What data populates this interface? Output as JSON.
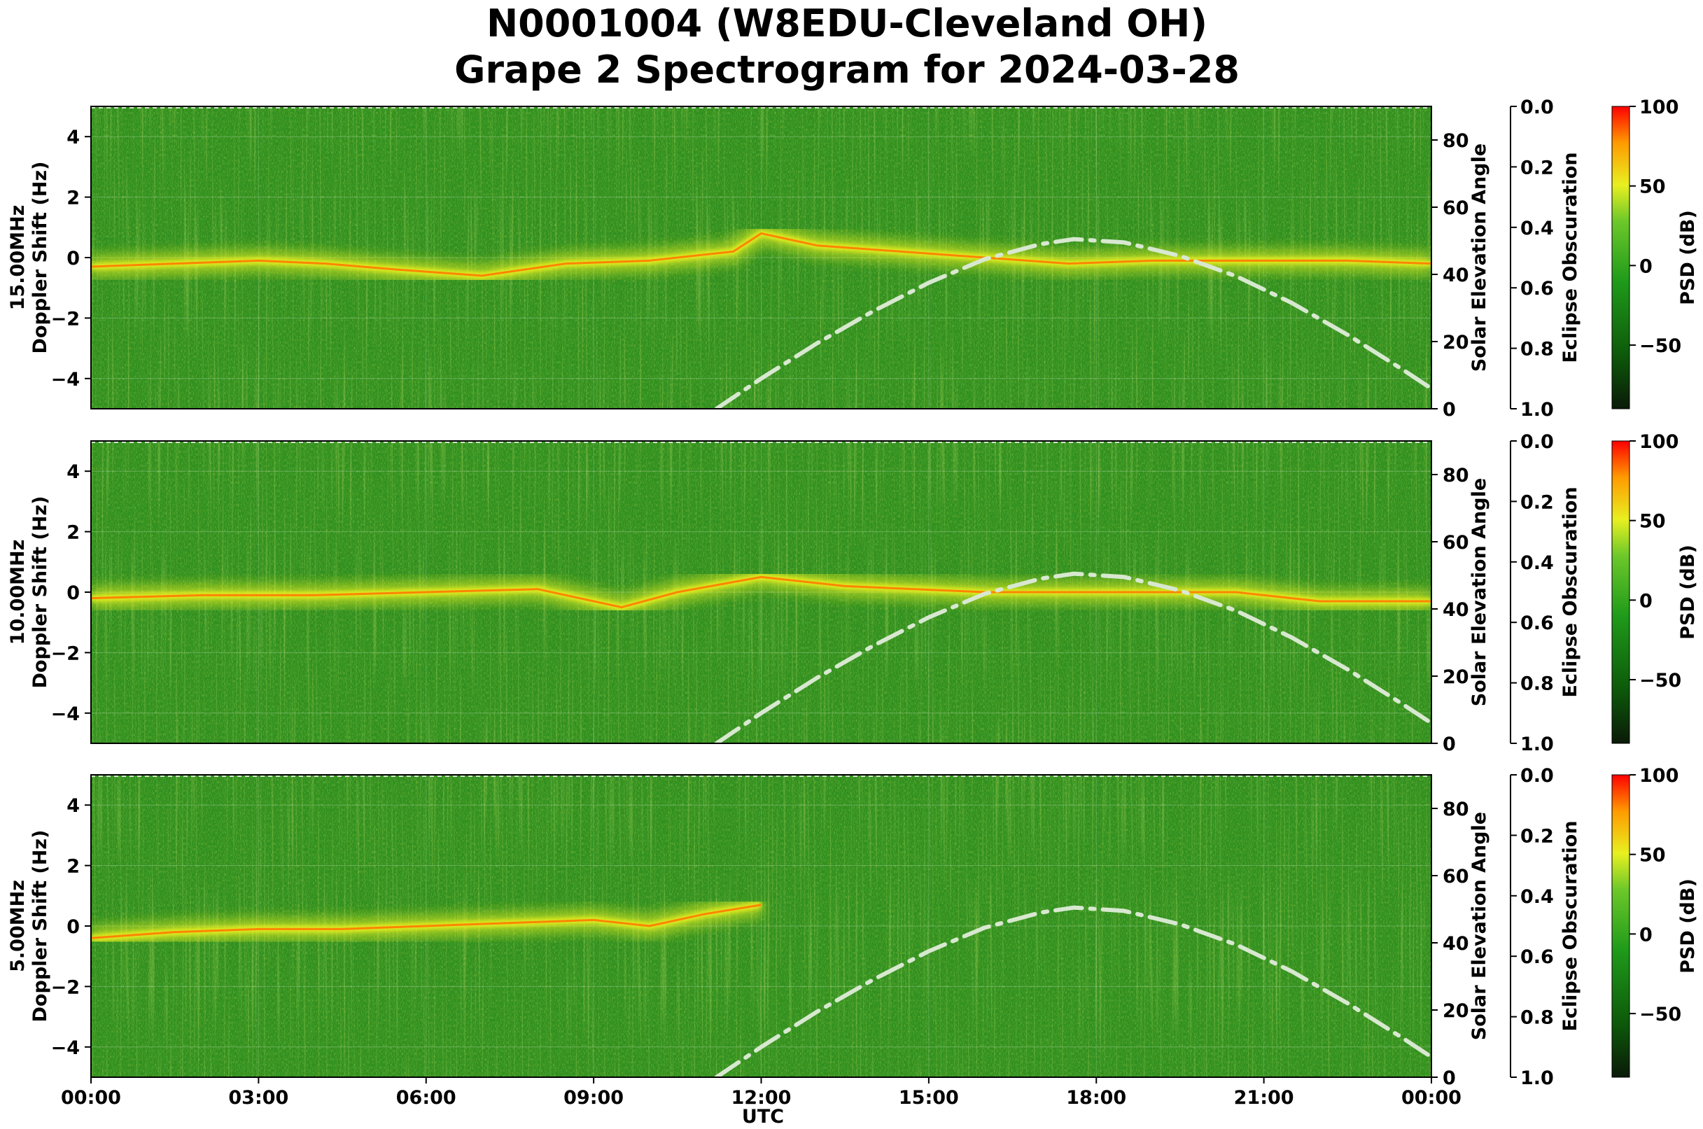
{
  "figure": {
    "title_line1": "N0001004 (W8EDU-Cleveland OH)",
    "title_line2": "Grape 2 Spectrogram for 2024-03-28"
  },
  "colors": {
    "spectrogram_base": "#2f8f1f",
    "band_core": "#ff7a00",
    "band_glow": "#e8f020",
    "solar_curve": "#d8e8d0",
    "colormap": [
      "#0a1a08",
      "#0d5a0a",
      "#1f9a1a",
      "#6cc82a",
      "#e8f020",
      "#ff9a00",
      "#ff0000"
    ]
  },
  "chart_data": [
    {
      "type": "heatmap",
      "panel": "15MHz",
      "ylabel_line1": "15.00MHz",
      "ylabel_line2": "Doppler Shift (Hz)",
      "ylim": [
        -5,
        5
      ],
      "yticks": [
        "4",
        "2",
        "0",
        "−2",
        "−4"
      ],
      "ytick_values": [
        4,
        2,
        0,
        -2,
        -4
      ],
      "right_label": "Solar Elevation Angle",
      "right_ylim": [
        0,
        90
      ],
      "right_ticks": [
        "0",
        "20",
        "40",
        "60",
        "80"
      ],
      "right_tick_values": [
        0,
        20,
        40,
        60,
        80
      ],
      "obscuration_label": "Eclipse Obscuration",
      "obscuration_ticks": [
        "0.0",
        "0.2",
        "0.4",
        "0.6",
        "0.8",
        "1.0"
      ],
      "obscuration_values": [
        0,
        0.2,
        0.4,
        0.6,
        0.8,
        1.0
      ],
      "colorbar_label": "PSD (dB)",
      "colorbar_range": [
        -90,
        100
      ],
      "colorbar_ticks": [
        "100",
        "50",
        "0",
        "−50"
      ],
      "colorbar_values": [
        100,
        50,
        0,
        -50
      ],
      "doppler_trace": [
        {
          "hour": 0,
          "hz": -0.3
        },
        {
          "hour": 1.5,
          "hz": -0.2
        },
        {
          "hour": 3,
          "hz": -0.1
        },
        {
          "hour": 4.2,
          "hz": -0.2
        },
        {
          "hour": 5.5,
          "hz": -0.4
        },
        {
          "hour": 7,
          "hz": -0.6
        },
        {
          "hour": 8.5,
          "hz": -0.2
        },
        {
          "hour": 10,
          "hz": -0.1
        },
        {
          "hour": 11.5,
          "hz": 0.2
        },
        {
          "hour": 12,
          "hz": 0.8
        },
        {
          "hour": 13,
          "hz": 0.4
        },
        {
          "hour": 14.5,
          "hz": 0.2
        },
        {
          "hour": 16,
          "hz": 0.0
        },
        {
          "hour": 17.5,
          "hz": -0.2
        },
        {
          "hour": 19,
          "hz": -0.1
        },
        {
          "hour": 21,
          "hz": -0.1
        },
        {
          "hour": 22.5,
          "hz": -0.1
        },
        {
          "hour": 24,
          "hz": -0.2
        }
      ],
      "trace_start": 0,
      "trace_end": 24
    },
    {
      "type": "heatmap",
      "panel": "10MHz",
      "ylabel_line1": "10.00MHz",
      "ylabel_line2": "Doppler Shift (Hz)",
      "ylim": [
        -5,
        5
      ],
      "yticks": [
        "4",
        "2",
        "0",
        "−2",
        "−4"
      ],
      "ytick_values": [
        4,
        2,
        0,
        -2,
        -4
      ],
      "right_label": "Solar Elevation Angle",
      "right_ylim": [
        0,
        90
      ],
      "right_ticks": [
        "0",
        "20",
        "40",
        "60",
        "80"
      ],
      "right_tick_values": [
        0,
        20,
        40,
        60,
        80
      ],
      "obscuration_label": "Eclipse Obscuration",
      "obscuration_ticks": [
        "0.0",
        "0.2",
        "0.4",
        "0.6",
        "0.8",
        "1.0"
      ],
      "obscuration_values": [
        0,
        0.2,
        0.4,
        0.6,
        0.8,
        1.0
      ],
      "colorbar_label": "PSD (dB)",
      "colorbar_range": [
        -90,
        100
      ],
      "colorbar_ticks": [
        "100",
        "50",
        "0",
        "−50"
      ],
      "colorbar_values": [
        100,
        50,
        0,
        -50
      ],
      "doppler_trace": [
        {
          "hour": 0,
          "hz": -0.2
        },
        {
          "hour": 2,
          "hz": -0.1
        },
        {
          "hour": 4,
          "hz": -0.1
        },
        {
          "hour": 6,
          "hz": 0.0
        },
        {
          "hour": 8,
          "hz": 0.1
        },
        {
          "hour": 9.5,
          "hz": -0.5
        },
        {
          "hour": 10.5,
          "hz": 0.0
        },
        {
          "hour": 12,
          "hz": 0.5
        },
        {
          "hour": 13.5,
          "hz": 0.2
        },
        {
          "hour": 16,
          "hz": 0.0
        },
        {
          "hour": 18,
          "hz": 0.0
        },
        {
          "hour": 20.5,
          "hz": 0.0
        },
        {
          "hour": 22,
          "hz": -0.3
        },
        {
          "hour": 24,
          "hz": -0.3
        }
      ],
      "trace_start": 0,
      "trace_end": 24
    },
    {
      "type": "heatmap",
      "panel": "5MHz",
      "ylabel_line1": "5.00MHz",
      "ylabel_line2": "Doppler Shift (Hz)",
      "ylim": [
        -5,
        5
      ],
      "yticks": [
        "4",
        "2",
        "0",
        "−2",
        "−4"
      ],
      "ytick_values": [
        4,
        2,
        0,
        -2,
        -4
      ],
      "right_label": "Solar Elevation Angle",
      "right_ylim": [
        0,
        90
      ],
      "right_ticks": [
        "0",
        "20",
        "40",
        "60",
        "80"
      ],
      "right_tick_values": [
        0,
        20,
        40,
        60,
        80
      ],
      "obscuration_label": "Eclipse Obscuration",
      "obscuration_ticks": [
        "0.0",
        "0.2",
        "0.4",
        "0.6",
        "0.8",
        "1.0"
      ],
      "obscuration_values": [
        0,
        0.2,
        0.4,
        0.6,
        0.8,
        1.0
      ],
      "colorbar_label": "PSD (dB)",
      "colorbar_range": [
        -90,
        100
      ],
      "colorbar_ticks": [
        "100",
        "50",
        "0",
        "−50"
      ],
      "colorbar_values": [
        100,
        50,
        0,
        -50
      ],
      "doppler_trace": [
        {
          "hour": 0,
          "hz": -0.4
        },
        {
          "hour": 1.5,
          "hz": -0.2
        },
        {
          "hour": 3,
          "hz": -0.1
        },
        {
          "hour": 4.5,
          "hz": -0.1
        },
        {
          "hour": 6,
          "hz": 0.0
        },
        {
          "hour": 7.5,
          "hz": 0.1
        },
        {
          "hour": 9,
          "hz": 0.2
        },
        {
          "hour": 10,
          "hz": 0.0
        },
        {
          "hour": 11,
          "hz": 0.4
        },
        {
          "hour": 12,
          "hz": 0.7
        }
      ],
      "trace_start": 0,
      "trace_end": 12
    }
  ],
  "solar_elevation": {
    "points": [
      {
        "hour": 11.2,
        "deg": 0
      },
      {
        "hour": 12,
        "deg": 9
      },
      {
        "hour": 13,
        "deg": 19.5
      },
      {
        "hour": 14,
        "deg": 29
      },
      {
        "hour": 15,
        "deg": 37.5
      },
      {
        "hour": 16,
        "deg": 44.5
      },
      {
        "hour": 17,
        "deg": 49
      },
      {
        "hour": 17.6,
        "deg": 50.5
      },
      {
        "hour": 18.5,
        "deg": 49.5
      },
      {
        "hour": 19.5,
        "deg": 45.5
      },
      {
        "hour": 20.5,
        "deg": 39.5
      },
      {
        "hour": 21.5,
        "deg": 31.5
      },
      {
        "hour": 22.5,
        "deg": 22
      },
      {
        "hour": 23.5,
        "deg": 11.5
      },
      {
        "hour": 24,
        "deg": 6
      }
    ]
  },
  "x_axis": {
    "label": "UTC",
    "ticks": [
      "00:00",
      "03:00",
      "06:00",
      "09:00",
      "12:00",
      "15:00",
      "18:00",
      "21:00",
      "00:00"
    ],
    "tick_hours": [
      0,
      3,
      6,
      9,
      12,
      15,
      18,
      21,
      24
    ],
    "xlim": [
      0,
      24
    ]
  }
}
